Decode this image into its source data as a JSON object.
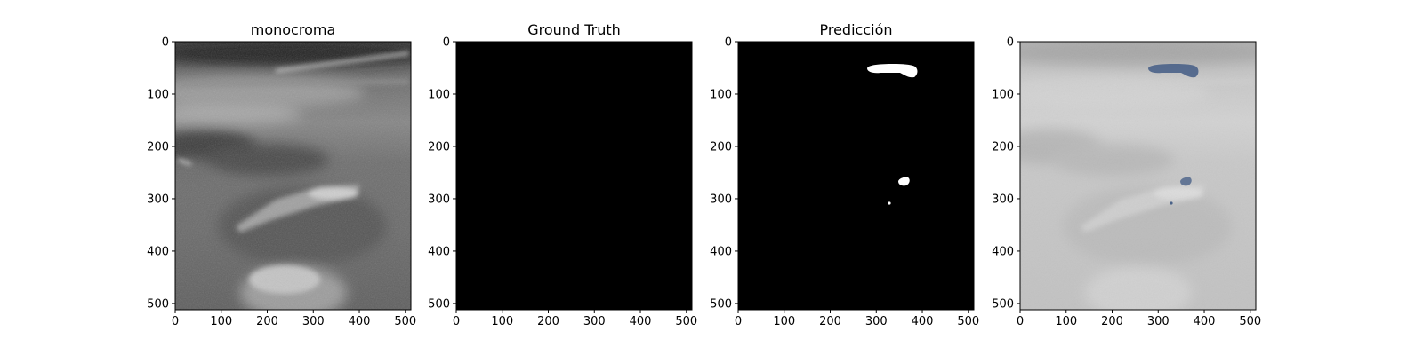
{
  "panels": [
    {
      "title": "monocroma"
    },
    {
      "title": "Ground Truth"
    },
    {
      "title": "Predicción"
    },
    {
      "title": ""
    }
  ],
  "axes": {
    "x_ticks": [
      "0",
      "100",
      "200",
      "300",
      "400",
      "500"
    ],
    "y_ticks": [
      "0",
      "100",
      "200",
      "300",
      "400",
      "500"
    ],
    "xlim": [
      0,
      512
    ],
    "ylim": [
      512,
      0
    ]
  },
  "colors": {
    "ground_truth_bg": "#000000",
    "prediction_fg": "#ffffff",
    "overlay_mask": "#4a6288"
  },
  "images": {
    "ultrasound": "grayscale ultrasound image",
    "ground_truth": "empty mask",
    "prediction": "binary mask with three regions",
    "overlay": "ultrasound with predicted mask overlay"
  }
}
